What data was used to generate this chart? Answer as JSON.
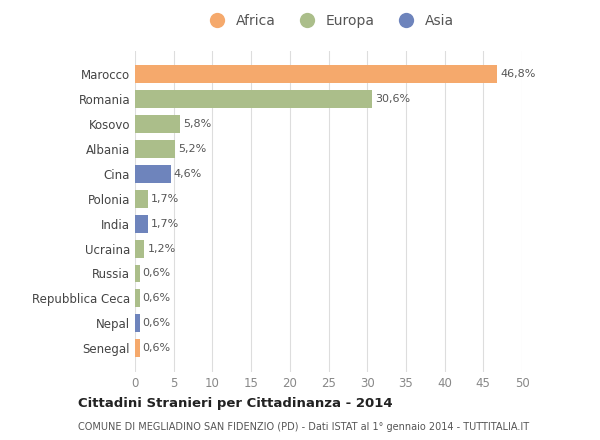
{
  "countries": [
    "Marocco",
    "Romania",
    "Kosovo",
    "Albania",
    "Cina",
    "Polonia",
    "India",
    "Ucraina",
    "Russia",
    "Repubblica Ceca",
    "Nepal",
    "Senegal"
  ],
  "values": [
    46.8,
    30.6,
    5.8,
    5.2,
    4.6,
    1.7,
    1.7,
    1.2,
    0.6,
    0.6,
    0.6,
    0.6
  ],
  "continents": [
    "Africa",
    "Europa",
    "Europa",
    "Europa",
    "Asia",
    "Europa",
    "Asia",
    "Europa",
    "Europa",
    "Europa",
    "Asia",
    "Africa"
  ],
  "colors": {
    "Africa": "#F5A96C",
    "Europa": "#ABBE8A",
    "Asia": "#6E84BC"
  },
  "legend_labels": [
    "Africa",
    "Europa",
    "Asia"
  ],
  "legend_colors": [
    "#F5A96C",
    "#ABBE8A",
    "#6E84BC"
  ],
  "xlim": [
    0,
    50
  ],
  "xticks": [
    0,
    5,
    10,
    15,
    20,
    25,
    30,
    35,
    40,
    45,
    50
  ],
  "title": "Cittadini Stranieri per Cittadinanza - 2014",
  "subtitle": "COMUNE DI MEGLIADINO SAN FIDENZIO (PD) - Dati ISTAT al 1° gennaio 2014 - TUTTITALIA.IT",
  "bg_color": "#FFFFFF",
  "grid_color": "#DDDDDD"
}
